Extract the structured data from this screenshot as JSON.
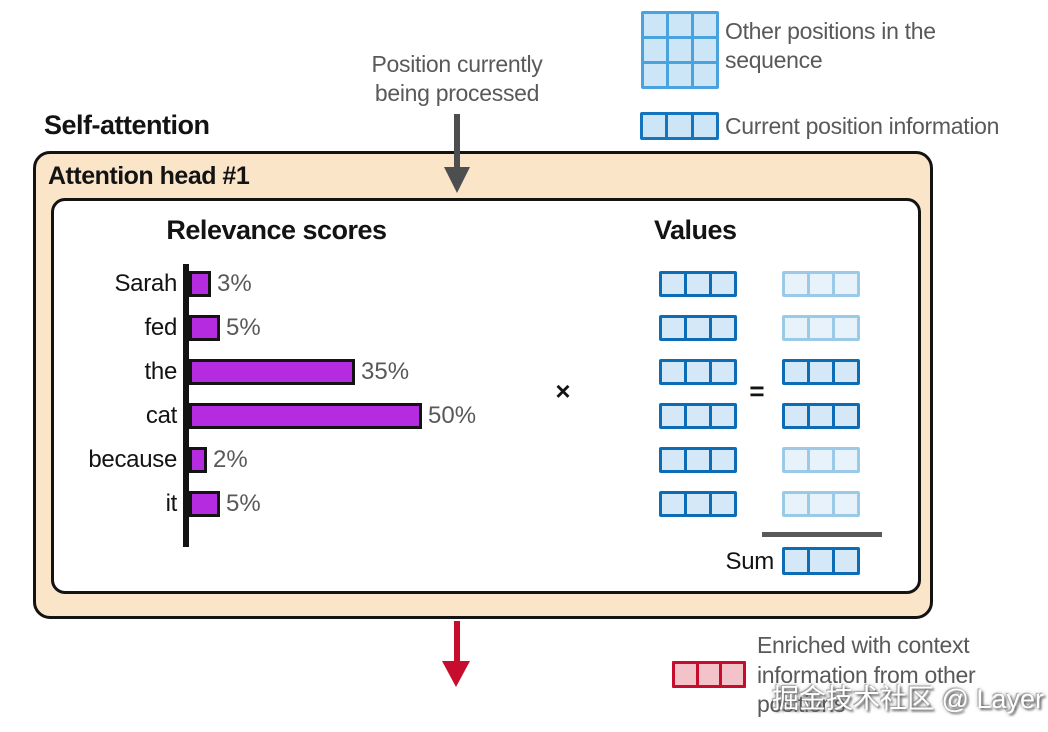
{
  "title": "Self-attention",
  "annotations": {
    "top_label_lines": [
      "Position currently",
      "being processed"
    ],
    "bottom_label_lines": [
      "Enriched with context",
      "information from other",
      "positions"
    ]
  },
  "legend": {
    "other_positions_lines": [
      "Other positions in the",
      "sequence"
    ],
    "current_position": "Current position information"
  },
  "attention_head": {
    "label": "Attention head #1"
  },
  "chart_data": {
    "type": "bar",
    "orientation": "horizontal",
    "title": "Relevance scores",
    "categories": [
      "Sarah",
      "fed",
      "the",
      "cat",
      "because",
      "it"
    ],
    "values": [
      3,
      5,
      35,
      50,
      2,
      5
    ],
    "value_labels": [
      "3%",
      "5%",
      "35%",
      "50%",
      "2%",
      "5%"
    ],
    "xlim": [
      0,
      50
    ],
    "bar_color": "#b52ce0",
    "grid": false,
    "legend_position": "none"
  },
  "values_section": {
    "title": "Values",
    "multiply_symbol": "×",
    "equals_symbol": "=",
    "sum_label": "Sum",
    "row_count": 6,
    "result_emphasis": [
      false,
      false,
      true,
      true,
      false,
      false
    ]
  },
  "colors": {
    "peach": "#fbe5c9",
    "bar": "#b52ce0",
    "gray-text": "#58595b",
    "arrow-gray": "#4d4e50",
    "blue-strong-border": "#0c6cb5",
    "blue-strong-fill": "#d4e8f7",
    "blue-faded-border": "#9bcae9",
    "blue-faded-fill": "#e8f2fb",
    "legend-grid-border": "#4aa3de",
    "legend-grid-fill": "#cde6f7",
    "red": "#c60d2e",
    "red-fill": "#f4c3c9"
  },
  "watermark": "掘金技术社区 @ Layer"
}
